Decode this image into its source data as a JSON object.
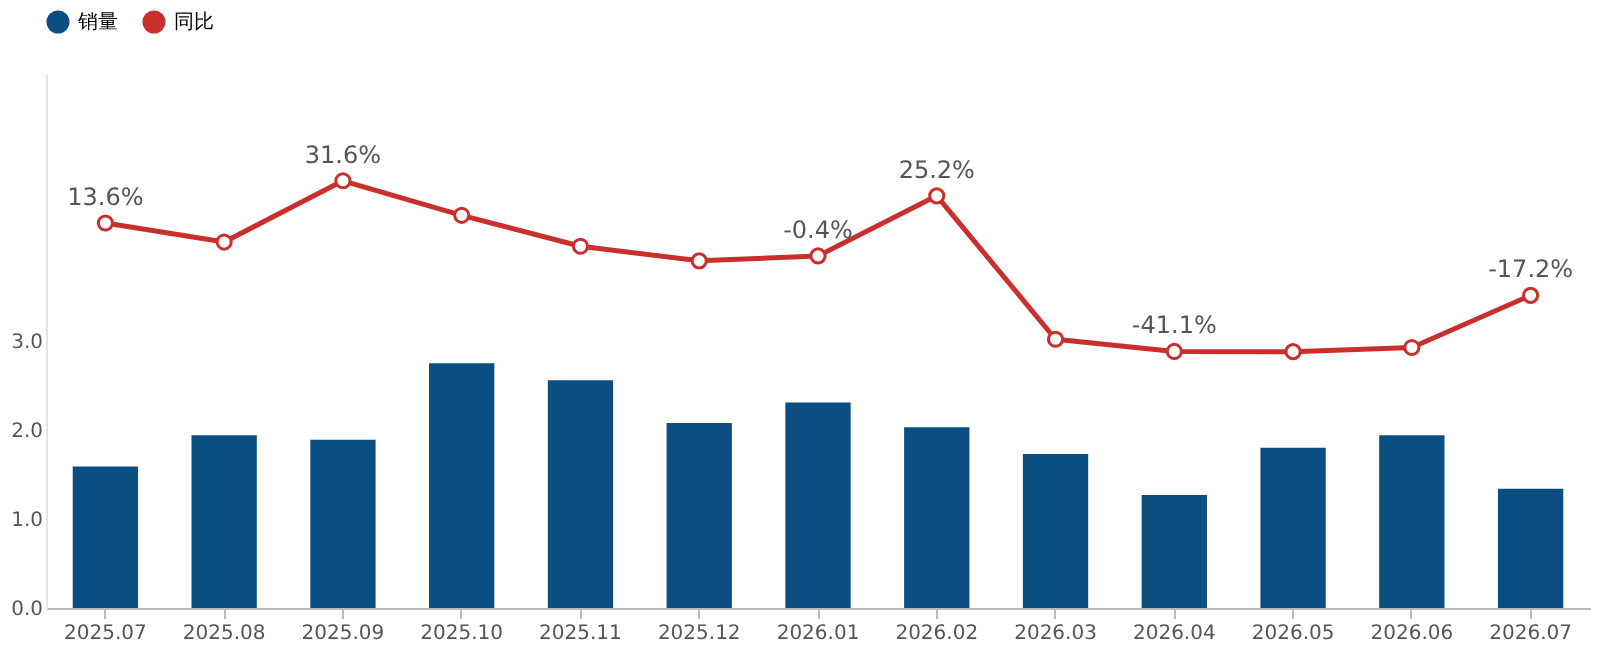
{
  "chart_data": {
    "type": "bar",
    "categories": [
      "2025.07",
      "2025.08",
      "2025.09",
      "2025.10",
      "2025.11",
      "2025.12",
      "2026.01",
      "2026.02",
      "2026.03",
      "2026.04",
      "2026.05",
      "2026.06",
      "2026.07"
    ],
    "series": [
      {
        "name": "销量",
        "color": "#0b4f82",
        "values": [
          1.59,
          1.94,
          1.89,
          2.75,
          2.56,
          2.08,
          2.31,
          2.03,
          1.73,
          1.27,
          1.8,
          1.94,
          1.34
        ]
      },
      {
        "name": "同比",
        "type": "line",
        "axis": "y2",
        "color": "#c9302c",
        "marker": "circle",
        "values": [
          13.6,
          5.5,
          31.6,
          16.9,
          3.7,
          -2.5,
          -0.4,
          25.2,
          -35.9,
          -41.1,
          -41.2,
          -39.4,
          -17.2
        ],
        "value_labels": [
          "13.6%",
          null,
          "31.6%",
          null,
          null,
          null,
          "-0.4%",
          "25.2%",
          null,
          "-41.1%",
          null,
          null,
          "-17.2%"
        ]
      }
    ],
    "ylim": [
      0,
      6
    ],
    "yticks": [
      {
        "value": 0,
        "label": "0.0"
      },
      {
        "value": 1,
        "label": "1.0"
      },
      {
        "value": 2,
        "label": "2.0"
      },
      {
        "value": 3,
        "label": "3.0"
      }
    ],
    "grid": false,
    "legend": "top",
    "tick_labels": "xy"
  }
}
